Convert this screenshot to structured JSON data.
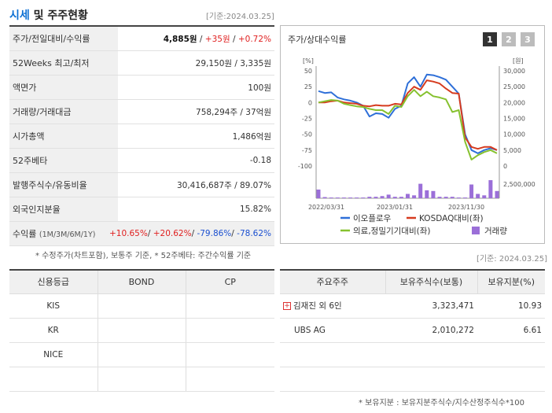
{
  "header": {
    "title_main": "시세",
    "title_rest": " 및 주주현황",
    "date": "[기준:2024.03.25]"
  },
  "summary_rows": [
    {
      "label": "주가/전일대비/수익률",
      "price": "4,885원",
      "sep1": " / ",
      "change": "+35원",
      "sep2": " / ",
      "pct": "+0.72%"
    },
    {
      "label": "52Weeks 최고/최저",
      "value": "29,150원 / 3,335원"
    },
    {
      "label": "액면가",
      "value": "100원"
    },
    {
      "label": "거래량/거래대금",
      "value": "758,294주 / 37억원"
    },
    {
      "label": "시가총액",
      "value": "1,486억원"
    },
    {
      "label": "52주베타",
      "value": "-0.18"
    },
    {
      "label": "발행주식수/유동비율",
      "value": "30,416,687주 / 89.07%"
    },
    {
      "label": "외국인지분율",
      "value": "15.82%"
    }
  ],
  "returns_row": {
    "label": "수익률",
    "sub": "(1M/3M/6M/1Y)",
    "r1m": "+10.65%",
    "r3m": "+20.62%",
    "r6m": "-79.86%",
    "r1y": "-78.62%",
    "sep": "/ "
  },
  "left_note": "* 수정주가(차트포함), 보통주 기준, * 52주베타: 주간수익률 기준",
  "chart_panel": {
    "title": "주가/상대수익률",
    "tabs": [
      "1",
      "2",
      "3"
    ],
    "left_unit": "[%]",
    "right_unit": "[원]"
  },
  "chart_data": {
    "type": "line",
    "x_labels": [
      "2022/03/31",
      "2023/01/31",
      "2023/11/30"
    ],
    "y_left_ticks": [
      "50",
      "25",
      "0",
      "-25",
      "-50",
      "-75",
      "-100"
    ],
    "y_right_ticks": [
      "30,000",
      "25,000",
      "20,000",
      "15,000",
      "10,000",
      "5,000",
      "0"
    ],
    "volume_tick": "2,500,000",
    "ylim_left": [
      -100,
      50
    ],
    "ylim_right": [
      0,
      30000
    ],
    "series": [
      {
        "name": "이오플로우",
        "color": "#2e6fd8",
        "values": [
          18,
          15,
          16,
          8,
          5,
          3,
          0,
          -5,
          -22,
          -17,
          -18,
          -24,
          -10,
          -5,
          30,
          40,
          25,
          44,
          43,
          40,
          36,
          25,
          14,
          -50,
          -75,
          -80,
          -75,
          -72,
          -75
        ]
      },
      {
        "name": "KOSDAQ대비(좌)",
        "color": "#d63b1f",
        "values": [
          0,
          0,
          2,
          3,
          0,
          -1,
          -2,
          -5,
          -6,
          -4,
          -5,
          -5,
          -2,
          -3,
          15,
          25,
          20,
          35,
          33,
          30,
          22,
          15,
          14,
          -55,
          -70,
          -73,
          -70,
          -70,
          -75
        ]
      },
      {
        "name": "의료,정밀기기대비(좌)",
        "color": "#86c12f",
        "values": [
          0,
          2,
          4,
          3,
          -2,
          -4,
          -6,
          -7,
          -10,
          -12,
          -12,
          -18,
          -5,
          -7,
          10,
          20,
          10,
          17,
          10,
          8,
          5,
          -15,
          -12,
          -62,
          -90,
          -83,
          -78,
          -75,
          -80
        ]
      }
    ],
    "volume": {
      "name": "거래량",
      "color": "#9b6fd8",
      "values": [
        0.6,
        0.08,
        0.05,
        0.05,
        0.05,
        0.05,
        0.05,
        0.05,
        0.1,
        0.1,
        0.15,
        0.25,
        0.1,
        0.1,
        0.3,
        0.2,
        1.0,
        0.55,
        0.5,
        0.1,
        0.1,
        0.1,
        0.05,
        0.05,
        0.95,
        0.3,
        0.2,
        1.25,
        0.5
      ]
    }
  },
  "legend": [
    {
      "label": "이오플로우",
      "color": "#2e6fd8",
      "kind": "line"
    },
    {
      "label": "KOSDAQ대비(좌)",
      "color": "#d63b1f",
      "kind": "line"
    },
    {
      "label": "의료,정밀기기대비(좌)",
      "color": "#86c12f",
      "kind": "line"
    },
    {
      "label": "거래량",
      "color": "#9b6fd8",
      "kind": "box"
    }
  ],
  "right_date": "[기준: 2024.03.25]",
  "credit_table": {
    "headers": [
      "신용등급",
      "BOND",
      "CP"
    ],
    "rows": [
      [
        "KIS",
        "",
        ""
      ],
      [
        "KR",
        "",
        ""
      ],
      [
        "NICE",
        "",
        ""
      ],
      [
        "",
        "",
        ""
      ]
    ]
  },
  "holder_table": {
    "headers": [
      "주요주주",
      "보유주식수(보통)",
      "보유지분(%)"
    ],
    "rows": [
      {
        "name": "김재진 외 6인",
        "shares": "3,323,471",
        "pct": "10.93",
        "expand": "+"
      },
      {
        "name": "UBS AG",
        "shares": "2,010,272",
        "pct": "6.61",
        "expand": ""
      },
      {
        "name": "",
        "shares": "",
        "pct": "",
        "expand": ""
      },
      {
        "name": "",
        "shares": "",
        "pct": "",
        "expand": ""
      }
    ]
  },
  "bottom_note": "* 보유지분 : 보유지분주식수/지수산정주식수*100"
}
